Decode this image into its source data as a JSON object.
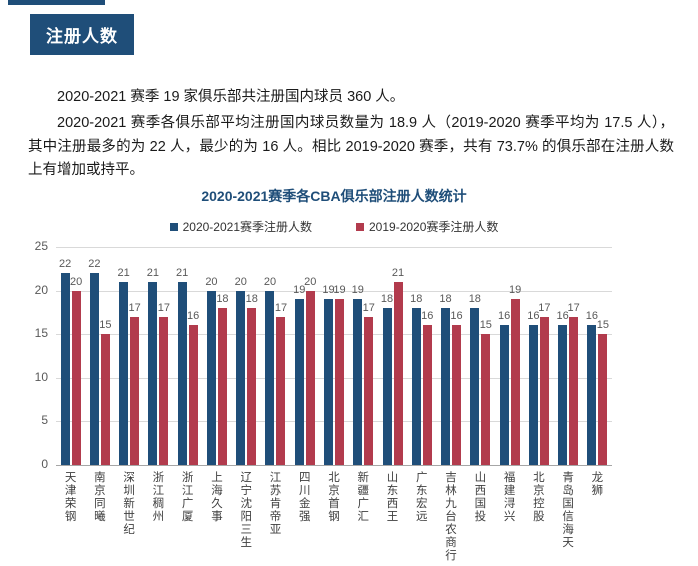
{
  "page": {
    "badge": "注册人数",
    "paragraphs": [
      "2020-2021 赛季 19 家俱乐部共注册国内球员 360 人。",
      "2020-2021 赛季各俱乐部平均注册国内球员数量为 18.9 人（2019-2020 赛季平均为 17.5 人），其中注册最多的为 22 人，最少的为 16 人。相比 2019-2020 赛季，共有 73.7% 的俱乐部在注册人数上有增加或持平。"
    ]
  },
  "colors": {
    "navy": "#1f4e79",
    "red": "#b23b4d",
    "gridline": "#d9d9d9",
    "axis_text": "#595959",
    "category_text": "#3f3f3f"
  },
  "chart_data": {
    "type": "bar",
    "title": "2020-2021赛季各CBA俱乐部注册人数统计",
    "categories": [
      "天津荣钢",
      "南京同曦",
      "深圳新世纪",
      "浙江稠州",
      "浙江广厦",
      "上海久事",
      "辽宁沈阳三生",
      "江苏肯帝亚",
      "四川金强",
      "北京首钢",
      "新疆广汇",
      "山东西王",
      "广东宏远",
      "吉林九台农商行",
      "山西国投",
      "福建浔兴",
      "北京控股",
      "青岛国信海天",
      "龙狮"
    ],
    "series": [
      {
        "name": "2020-2021赛季注册人数",
        "color": "#1f4e79",
        "values": [
          22,
          22,
          21,
          21,
          21,
          20,
          20,
          20,
          19,
          19,
          19,
          18,
          18,
          18,
          18,
          16,
          16,
          16,
          16
        ]
      },
      {
        "name": "2019-2020赛季注册人数",
        "color": "#b23b4d",
        "values": [
          20,
          15,
          17,
          17,
          16,
          18,
          18,
          17,
          20,
          19,
          17,
          21,
          16,
          16,
          15,
          19,
          17,
          17,
          15
        ]
      }
    ],
    "xlabel": "",
    "ylabel": "",
    "ylim": [
      0,
      25
    ],
    "yticks": [
      0,
      5,
      10,
      15,
      20,
      25
    ],
    "grid": true,
    "legend_position": "top",
    "data_labels": true
  }
}
